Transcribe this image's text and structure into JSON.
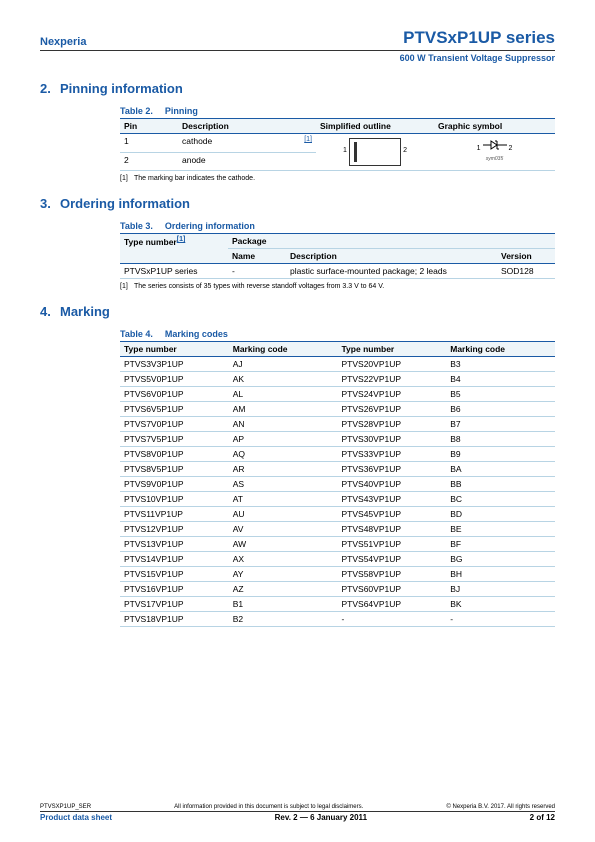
{
  "header": {
    "brand": "Nexperia",
    "title": "PTVSxP1UP series",
    "subtitle": "600 W Transient Voltage Suppressor"
  },
  "sections": {
    "s2": {
      "num": "2.",
      "title": "Pinning information"
    },
    "s3": {
      "num": "3.",
      "title": "Ordering information"
    },
    "s4": {
      "num": "4.",
      "title": "Marking"
    }
  },
  "table2": {
    "cap_num": "Table 2.",
    "cap_title": "Pinning",
    "h_pin": "Pin",
    "h_desc": "Description",
    "h_out": "Simplified outline",
    "h_sym": "Graphic symbol",
    "r1_pin": "1",
    "r1_desc": "cathode",
    "r1_ref": "[1]",
    "r2_pin": "2",
    "r2_desc": "anode",
    "sym_l": "1",
    "sym_r": "2",
    "sym_name": "sym035",
    "footnote_num": "[1]",
    "footnote_text": "The marking bar indicates the cathode."
  },
  "table3": {
    "cap_num": "Table 3.",
    "cap_title": "Ordering information",
    "h_type": "Type number",
    "h_ref": "[1]",
    "h_pkg": "Package",
    "h_name": "Name",
    "h_desc": "Description",
    "h_ver": "Version",
    "r_type": "PTVSxP1UP series",
    "r_name": "-",
    "r_desc": "plastic surface-mounted package; 2 leads",
    "r_ver": "SOD128",
    "footnote_num": "[1]",
    "footnote_text": "The series consists of 35 types with reverse standoff voltages from 3.3 V to 64 V."
  },
  "table4": {
    "cap_num": "Table 4.",
    "cap_title": "Marking codes",
    "h_type": "Type number",
    "h_code": "Marking code",
    "rows": [
      [
        "PTVS3V3P1UP",
        "AJ",
        "PTVS20VP1UP",
        "B3"
      ],
      [
        "PTVS5V0P1UP",
        "AK",
        "PTVS22VP1UP",
        "B4"
      ],
      [
        "PTVS6V0P1UP",
        "AL",
        "PTVS24VP1UP",
        "B5"
      ],
      [
        "PTVS6V5P1UP",
        "AM",
        "PTVS26VP1UP",
        "B6"
      ],
      [
        "PTVS7V0P1UP",
        "AN",
        "PTVS28VP1UP",
        "B7"
      ],
      [
        "PTVS7V5P1UP",
        "AP",
        "PTVS30VP1UP",
        "B8"
      ],
      [
        "PTVS8V0P1UP",
        "AQ",
        "PTVS33VP1UP",
        "B9"
      ],
      [
        "PTVS8V5P1UP",
        "AR",
        "PTVS36VP1UP",
        "BA"
      ],
      [
        "PTVS9V0P1UP",
        "AS",
        "PTVS40VP1UP",
        "BB"
      ],
      [
        "PTVS10VP1UP",
        "AT",
        "PTVS43VP1UP",
        "BC"
      ],
      [
        "PTVS11VP1UP",
        "AU",
        "PTVS45VP1UP",
        "BD"
      ],
      [
        "PTVS12VP1UP",
        "AV",
        "PTVS48VP1UP",
        "BE"
      ],
      [
        "PTVS13VP1UP",
        "AW",
        "PTVS51VP1UP",
        "BF"
      ],
      [
        "PTVS14VP1UP",
        "AX",
        "PTVS54VP1UP",
        "BG"
      ],
      [
        "PTVS15VP1UP",
        "AY",
        "PTVS58VP1UP",
        "BH"
      ],
      [
        "PTVS16VP1UP",
        "AZ",
        "PTVS60VP1UP",
        "BJ"
      ],
      [
        "PTVS17VP1UP",
        "B1",
        "PTVS64VP1UP",
        "BK"
      ],
      [
        "PTVS18VP1UP",
        "B2",
        "-",
        "-"
      ]
    ]
  },
  "footer": {
    "doc_id": "PTVSXP1UP_SER",
    "disclaimer": "All information provided in this document is subject to legal disclaimers.",
    "copyright": "© Nexperia B.V. 2017. All rights reserved",
    "doc_type": "Product data sheet",
    "rev": "Rev. 2 — 6 January 2011",
    "page": "2 of 12"
  }
}
